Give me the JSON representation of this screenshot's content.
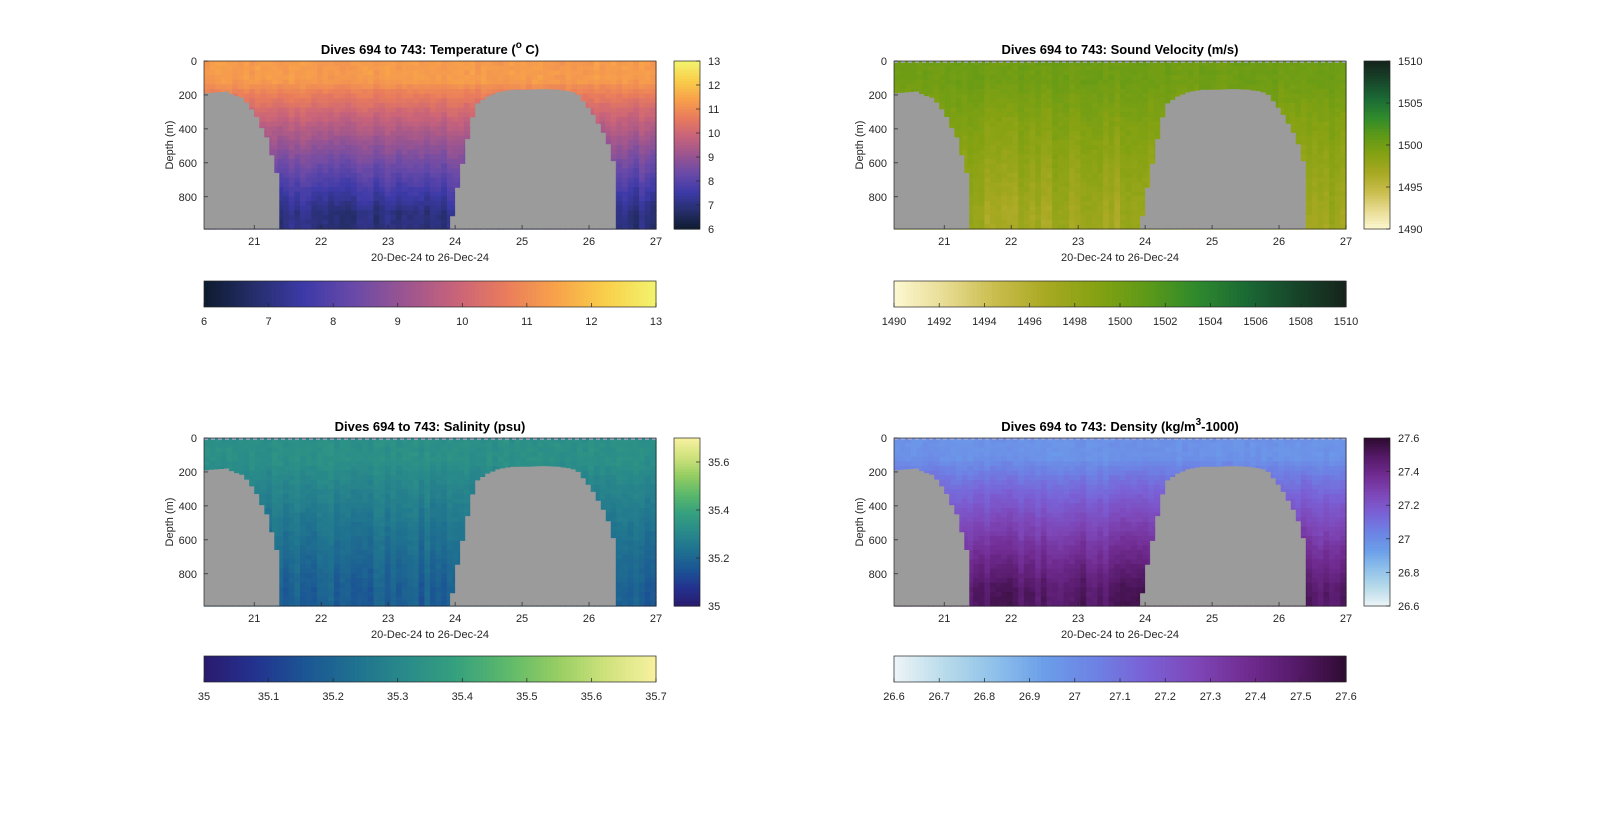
{
  "figure": {
    "background": "#ffffff",
    "mask_color": "#9b9b9b"
  },
  "chart_data": [
    {
      "type": "heatmap",
      "id": "temperature",
      "title": "Dives 694 to 743: Temperature (",
      "title_super": "o",
      "title_after": " C)",
      "xlabel": "20-Dec-24 to 26-Dec-24",
      "ylabel": "Depth (m)",
      "xlim": [
        20.25,
        27.0
      ],
      "ylim": [
        0,
        990
      ],
      "xticks": [
        "21",
        "22",
        "23",
        "24",
        "25",
        "26",
        "27"
      ],
      "yticks": [
        "0",
        "200",
        "400",
        "600",
        "800"
      ],
      "colorbar_ticks": [
        "6",
        "7",
        "8",
        "9",
        "10",
        "11",
        "12",
        "13"
      ],
      "hcolorbar_ticks": [
        "6",
        "7",
        "8",
        "9",
        "10",
        "11",
        "12",
        "13"
      ],
      "clim": [
        6,
        13
      ],
      "colormap": [
        "#0d1b2e",
        "#262e6b",
        "#3d3aa8",
        "#6a4aa8",
        "#9b5590",
        "#c8637a",
        "#e97c5c",
        "#f8a24a",
        "#f9cf4a",
        "#f3f36e"
      ],
      "surface_value": 11.3,
      "deep_value": 7.0,
      "mixed_layer_depth": 120,
      "show_surface_line": false
    },
    {
      "type": "heatmap",
      "id": "sound_velocity",
      "title": "Dives 694 to 743: Sound Velocity (m/s)",
      "xlabel": "20-Dec-24 to 26-Dec-24",
      "ylabel": "Depth (m)",
      "xlim": [
        20.25,
        27.0
      ],
      "ylim": [
        0,
        990
      ],
      "xticks": [
        "21",
        "22",
        "23",
        "24",
        "25",
        "26",
        "27"
      ],
      "yticks": [
        "0",
        "200",
        "400",
        "600",
        "800"
      ],
      "colorbar_ticks": [
        "1490",
        "1495",
        "1500",
        "1505",
        "1510"
      ],
      "hcolorbar_ticks": [
        "1490",
        "1492",
        "1494",
        "1496",
        "1498",
        "1500",
        "1502",
        "1504",
        "1506",
        "1508",
        "1510"
      ],
      "clim": [
        1490,
        1510
      ],
      "colormap": [
        "#fdf8d2",
        "#e8dc94",
        "#cabd4e",
        "#a9a923",
        "#86a212",
        "#5f9a17",
        "#2f8a2c",
        "#1b6a35",
        "#17452a",
        "#15241b"
      ],
      "surface_value": 1500.2,
      "deep_value": 1497.2,
      "mixed_layer_depth": 120,
      "show_surface_line": true
    },
    {
      "type": "heatmap",
      "id": "salinity",
      "title": "Dives 694 to 743: Salinity (psu)",
      "xlabel": "20-Dec-24 to 26-Dec-24",
      "ylabel": "Depth (m)",
      "xlim": [
        20.25,
        27.0
      ],
      "ylim": [
        0,
        990
      ],
      "xticks": [
        "21",
        "22",
        "23",
        "24",
        "25",
        "26",
        "27"
      ],
      "yticks": [
        "0",
        "200",
        "400",
        "600",
        "800"
      ],
      "colorbar_ticks": [
        "35",
        "35.2",
        "35.4",
        "35.6"
      ],
      "hcolorbar_ticks": [
        "35",
        "35.1",
        "35.2",
        "35.3",
        "35.4",
        "35.5",
        "35.6",
        "35.7"
      ],
      "clim": [
        35.0,
        35.7
      ],
      "colormap": [
        "#2a1a6e",
        "#23328f",
        "#1b5594",
        "#1f7190",
        "#298a8a",
        "#35a07e",
        "#5bb86b",
        "#94cd62",
        "#cfe27c",
        "#f7f1a0"
      ],
      "surface_value": 35.33,
      "deep_value": 35.18,
      "mixed_layer_depth": 140,
      "show_surface_line": true
    },
    {
      "type": "heatmap",
      "id": "density",
      "title": "Dives 694 to 743: Density (kg/m",
      "title_super": "3",
      "title_after": "-1000)",
      "xlabel": "20-Dec-24 to 26-Dec-24",
      "ylabel": "Depth (m)",
      "xlim": [
        20.25,
        27.0
      ],
      "ylim": [
        0,
        990
      ],
      "xticks": [
        "21",
        "22",
        "23",
        "24",
        "25",
        "26",
        "27"
      ],
      "yticks": [
        "0",
        "200",
        "400",
        "600",
        "800"
      ],
      "colorbar_ticks": [
        "26.6",
        "26.8",
        "27",
        "27.2",
        "27.4",
        "27.6"
      ],
      "hcolorbar_ticks": [
        "26.6",
        "26.7",
        "26.8",
        "26.9",
        "27",
        "27.1",
        "27.2",
        "27.3",
        "27.4",
        "27.5",
        "27.6"
      ],
      "clim": [
        26.6,
        27.6
      ],
      "colormap": [
        "#eef5f7",
        "#b9dbea",
        "#8fc1ea",
        "#6b9ee9",
        "#6d82e4",
        "#7a61d6",
        "#7e47b8",
        "#712c92",
        "#561a69",
        "#2e0b30"
      ],
      "surface_value": 26.98,
      "deep_value": 27.5,
      "mixed_layer_depth": 120,
      "show_surface_line": true
    }
  ],
  "seafloor_mask": {
    "x": [
      20.25,
      20.55,
      20.65,
      20.8,
      20.9,
      21.0,
      21.08,
      21.15,
      21.3,
      21.35,
      23.9,
      23.95,
      24.1,
      24.2,
      24.3,
      24.45,
      24.6,
      24.8,
      25.0,
      25.3,
      25.5,
      25.7,
      25.8,
      25.9,
      26.0,
      26.1,
      26.2,
      26.3,
      26.35,
      26.4,
      27.0
    ],
    "depth": [
      190,
      180,
      200,
      220,
      270,
      330,
      400,
      450,
      660,
      990,
      990,
      840,
      560,
      360,
      250,
      210,
      185,
      170,
      170,
      165,
      170,
      180,
      200,
      250,
      300,
      370,
      440,
      540,
      640,
      990,
      990
    ]
  }
}
